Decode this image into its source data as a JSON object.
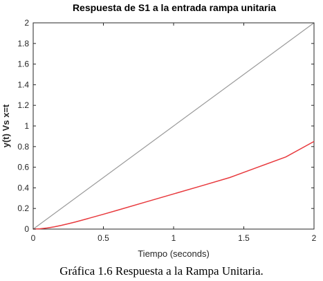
{
  "caption": "Gráfica 1.6 Respuesta a la Rampa Unitaria.",
  "chart_data": {
    "type": "line",
    "title": "Respuesta de S1 a la entrada rampa unitaria",
    "xlabel": "Tiempo (seconds)",
    "ylabel": "y(t) Vs x=t",
    "xlim": [
      0,
      2
    ],
    "ylim": [
      0,
      2
    ],
    "xticks": [
      "0",
      "0.5",
      "1",
      "1.5",
      "2"
    ],
    "yticks": [
      "0",
      "0.2",
      "0.4",
      "0.6",
      "0.8",
      "1",
      "1.2",
      "1.4",
      "1.6",
      "1.8",
      "2"
    ],
    "grid": false,
    "series": [
      {
        "color": "#9a9a9a",
        "x": [
          0,
          0.5,
          1,
          1.5,
          2
        ],
        "y": [
          0,
          0.5,
          1,
          1.5,
          2
        ]
      },
      {
        "color": "#e8393d",
        "x": [
          0,
          0.05,
          0.1,
          0.15,
          0.2,
          0.25,
          0.3,
          0.4,
          0.5,
          0.6,
          0.8,
          1.0,
          1.2,
          1.4,
          1.6,
          1.8,
          2.0
        ],
        "y": [
          0,
          0.003,
          0.011,
          0.022,
          0.036,
          0.052,
          0.069,
          0.106,
          0.144,
          0.183,
          0.262,
          0.341,
          0.42,
          0.5,
          0.6,
          0.7,
          0.85
        ]
      }
    ]
  }
}
